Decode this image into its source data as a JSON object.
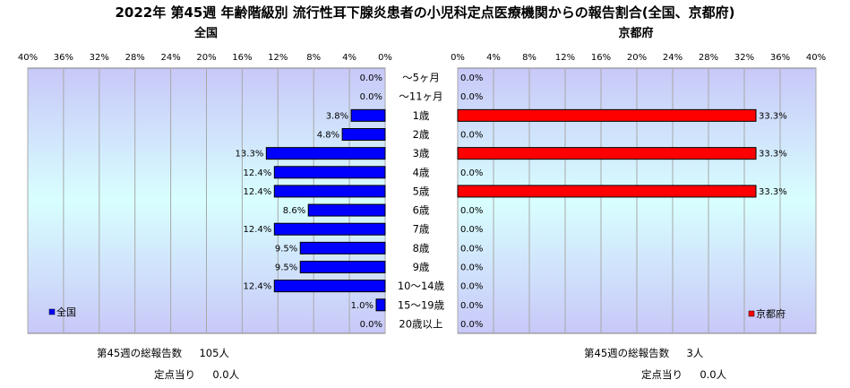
{
  "title": "2022年 第45週 年齢階級別 流行性耳下腺炎患者の小児科定点医療機関からの報告割合(全国、京都府)",
  "colors": {
    "national_bar": "#0000ff",
    "kyoto_bar": "#ff0000",
    "bar_outline": "#000000"
  },
  "chart_data": {
    "type": "bar",
    "orientation": "horizontal",
    "layout": "butterfly",
    "categories": [
      "～5ヶ月",
      "～11ヶ月",
      "1歳",
      "2歳",
      "3歳",
      "4歳",
      "5歳",
      "6歳",
      "7歳",
      "8歳",
      "9歳",
      "10～14歳",
      "15～19歳",
      "20歳以上"
    ],
    "xlim": [
      0,
      40
    ],
    "ticks": [
      "0%",
      "4%",
      "8%",
      "12%",
      "16%",
      "20%",
      "24%",
      "28%",
      "32%",
      "36%",
      "40%"
    ],
    "grid": true,
    "panels": [
      {
        "title": "全国",
        "direction": "left",
        "series": [
          {
            "name": "全国",
            "values": [
              0.0,
              0.0,
              3.8,
              4.8,
              13.3,
              12.4,
              12.4,
              8.6,
              12.4,
              9.5,
              9.5,
              12.4,
              1.0,
              0.0
            ]
          }
        ],
        "value_labels": [
          "0.0%",
          "0.0%",
          "3.8%",
          "4.8%",
          "13.3%",
          "12.4%",
          "12.4%",
          "8.6%",
          "12.4%",
          "9.5%",
          "9.5%",
          "12.4%",
          "1.0%",
          "0.0%"
        ],
        "legend": {
          "label": "全国",
          "position": "bottom-left"
        }
      },
      {
        "title": "京都府",
        "direction": "right",
        "series": [
          {
            "name": "京都府",
            "values": [
              0.0,
              0.0,
              33.3,
              0.0,
              33.3,
              0.0,
              33.3,
              0.0,
              0.0,
              0.0,
              0.0,
              0.0,
              0.0,
              0.0
            ]
          }
        ],
        "value_labels": [
          "0.0%",
          "0.0%",
          "33.3%",
          "0.0%",
          "33.3%",
          "0.0%",
          "33.3%",
          "0.0%",
          "0.0%",
          "0.0%",
          "0.0%",
          "0.0%",
          "0.0%",
          "0.0%"
        ],
        "legend": {
          "label": "京都府",
          "position": "bottom-right"
        }
      }
    ]
  },
  "footer": {
    "national": {
      "total_label": "第45週の総報告数",
      "total_value": "105人",
      "per_label": "定点当り",
      "per_value": "0.0人"
    },
    "kyoto": {
      "total_label": "第45週の総報告数",
      "total_value": "3人",
      "per_label": "定点当り",
      "per_value": "0.0人"
    }
  }
}
